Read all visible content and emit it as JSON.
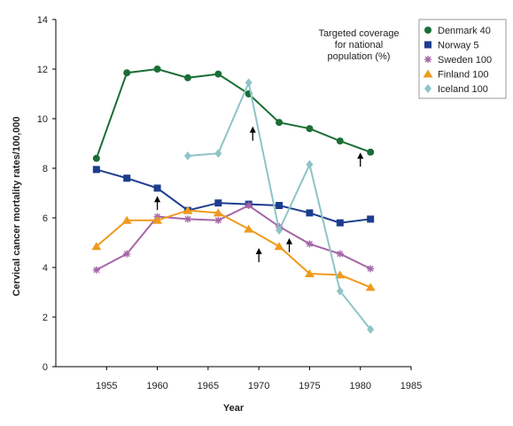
{
  "chart_data": {
    "type": "line",
    "xlabel": "Year",
    "ylabel": "Cervical cancer mortality rates/100,000",
    "xlim": [
      1950,
      1985
    ],
    "ylim": [
      0,
      14
    ],
    "xticks": [
      1955,
      1960,
      1965,
      1970,
      1975,
      1980,
      1985
    ],
    "yticks": [
      0,
      2,
      4,
      6,
      8,
      10,
      12,
      14
    ],
    "grid": false,
    "legend_position": "top-right",
    "annotation": [
      "Targeted coverage",
      "for national",
      "population (%)"
    ],
    "series": [
      {
        "name": "Denmark 40",
        "color": "#1a6e35",
        "marker": "circle",
        "x": [
          1954,
          1957,
          1960,
          1963,
          1966,
          1969,
          1972,
          1975,
          1978,
          1981
        ],
        "y": [
          8.4,
          11.85,
          12.0,
          11.65,
          11.8,
          11.0,
          9.85,
          9.6,
          9.1,
          8.65
        ]
      },
      {
        "name": "Norway 5",
        "color": "#1c3d8f",
        "marker": "square",
        "x": [
          1954,
          1957,
          1960,
          1963,
          1966,
          1969,
          1972,
          1975,
          1978,
          1981
        ],
        "y": [
          7.95,
          7.6,
          7.2,
          6.3,
          6.6,
          6.55,
          6.5,
          6.2,
          5.8,
          5.95
        ]
      },
      {
        "name": "Sweden 100",
        "color": "#a566a8",
        "marker": "asterisk",
        "x": [
          1954,
          1957,
          1960,
          1963,
          1966,
          1969,
          1972,
          1975,
          1978,
          1981
        ],
        "y": [
          3.9,
          4.55,
          6.05,
          5.95,
          5.9,
          6.5,
          5.65,
          4.95,
          4.55,
          3.95
        ]
      },
      {
        "name": "Finland 100",
        "color": "#ef9a1c",
        "marker": "triangle",
        "x": [
          1954,
          1957,
          1960,
          1963,
          1966,
          1969,
          1972,
          1975,
          1978,
          1981
        ],
        "y": [
          4.85,
          5.9,
          5.9,
          6.3,
          6.2,
          5.55,
          4.85,
          3.75,
          3.7,
          3.2
        ]
      },
      {
        "name": "Iceland 100",
        "color": "#8fc4c6",
        "marker": "diamond",
        "x": [
          1963,
          1966,
          1969,
          1972,
          1975,
          1978,
          1981
        ],
        "y": [
          8.5,
          8.6,
          11.45,
          5.5,
          8.15,
          3.05,
          1.5
        ]
      }
    ],
    "arrows": [
      {
        "x": 1960,
        "y": 6.6
      },
      {
        "x": 1969.4,
        "y": 9.4
      },
      {
        "x": 1970,
        "y": 4.5
      },
      {
        "x": 1973,
        "y": 4.9
      },
      {
        "x": 1980,
        "y": 8.35
      }
    ]
  }
}
